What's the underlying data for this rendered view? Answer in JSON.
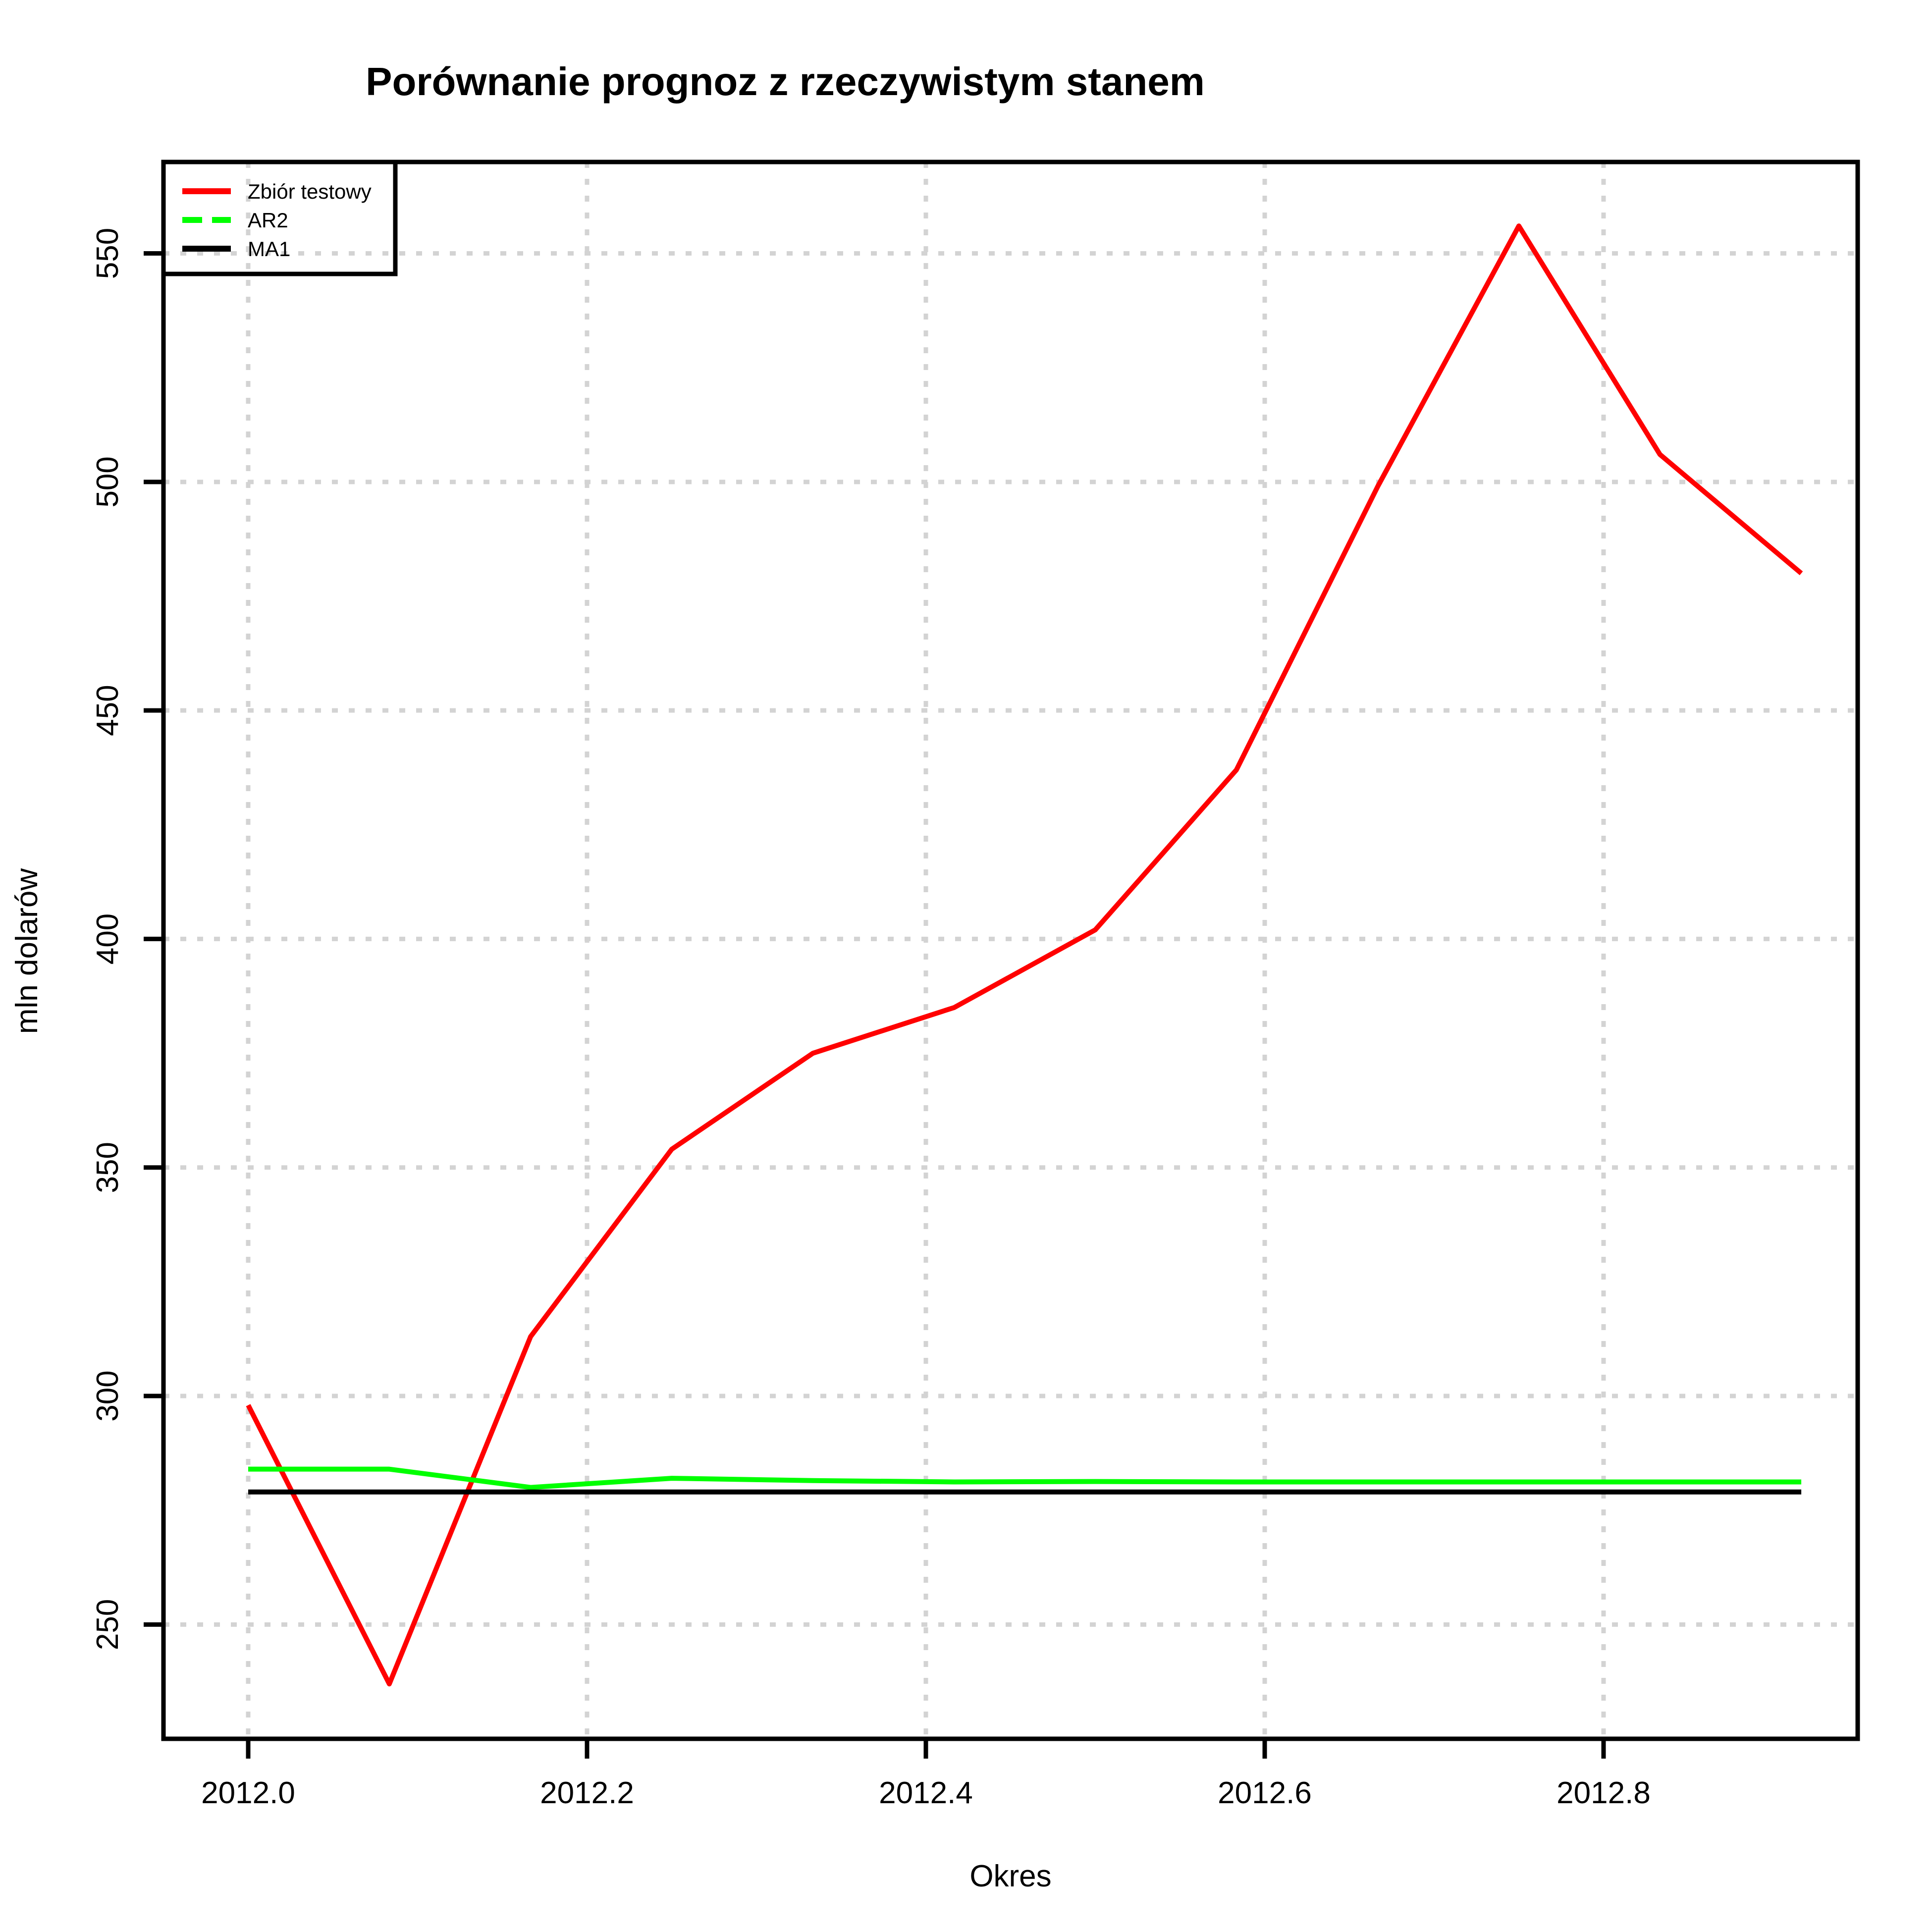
{
  "chart_data": {
    "type": "line",
    "title": "Porównanie prognoz z rzeczywistym stanem",
    "xlabel": "Okres",
    "ylabel": "mln dolarów",
    "xlim": [
      2011.95,
      2012.95
    ],
    "ylim": [
      225,
      570
    ],
    "x_ticks": [
      2012.0,
      2012.2,
      2012.4,
      2012.6,
      2012.8
    ],
    "x_tick_labels": [
      "2012.0",
      "2012.2",
      "2012.4",
      "2012.6",
      "2012.8"
    ],
    "y_ticks": [
      250,
      300,
      350,
      400,
      450,
      500,
      550
    ],
    "y_tick_labels": [
      "250",
      "300",
      "350",
      "400",
      "450",
      "500",
      "550"
    ],
    "grid": true,
    "legend_position": "top-left",
    "x": [
      2012.0,
      2012.0833,
      2012.1667,
      2012.25,
      2012.3333,
      2012.4167,
      2012.5,
      2012.5833,
      2012.6667,
      2012.75,
      2012.8333,
      2012.9167
    ],
    "series": [
      {
        "name": "Zbiór testowy",
        "color": "#ff0000",
        "style": "solid",
        "values": [
          298,
          237,
          313,
          354,
          375,
          385,
          402,
          437,
          499,
          556,
          506,
          480
        ]
      },
      {
        "name": "AR2",
        "color": "#00ff00",
        "style": "dashed",
        "values": [
          284,
          284,
          280,
          282,
          281.5,
          281.2,
          281.3,
          281.2,
          281.2,
          281.2,
          281.2,
          281.2
        ]
      },
      {
        "name": "MA1",
        "color": "#000000",
        "style": "solid",
        "values": [
          279,
          279,
          279,
          279,
          279,
          279,
          279,
          279,
          279,
          279,
          279,
          279
        ]
      }
    ]
  }
}
